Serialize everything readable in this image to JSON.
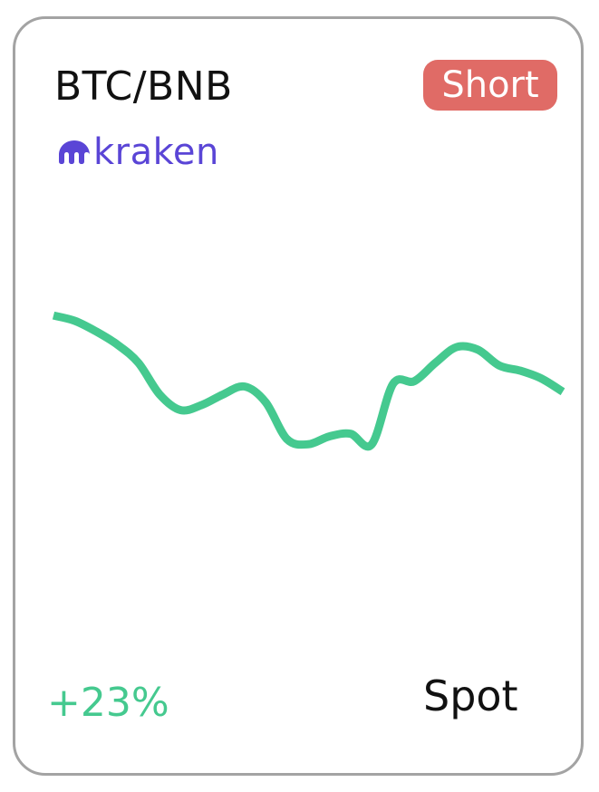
{
  "card": {
    "pair": "BTC/BNB",
    "position": "Short",
    "exchange": {
      "name": "kraken",
      "icon": "kraken-logo-icon"
    },
    "change": "+23%",
    "market_type": "Spot"
  },
  "colors": {
    "short_badge": "#e06b66",
    "line": "#45c98f",
    "change_text": "#45c98f",
    "exchange_brand": "#5a45d6",
    "border": "#a3a3a3"
  },
  "chart_data": {
    "type": "line",
    "title": "",
    "xlabel": "",
    "ylabel": "",
    "grid": false,
    "series": [
      {
        "values": [
          82,
          80,
          76,
          71,
          64,
          52,
          46,
          48,
          52,
          55,
          49,
          35,
          33,
          36,
          37,
          33,
          56,
          57,
          64,
          70,
          69,
          63,
          61,
          58,
          53
        ]
      }
    ]
  }
}
